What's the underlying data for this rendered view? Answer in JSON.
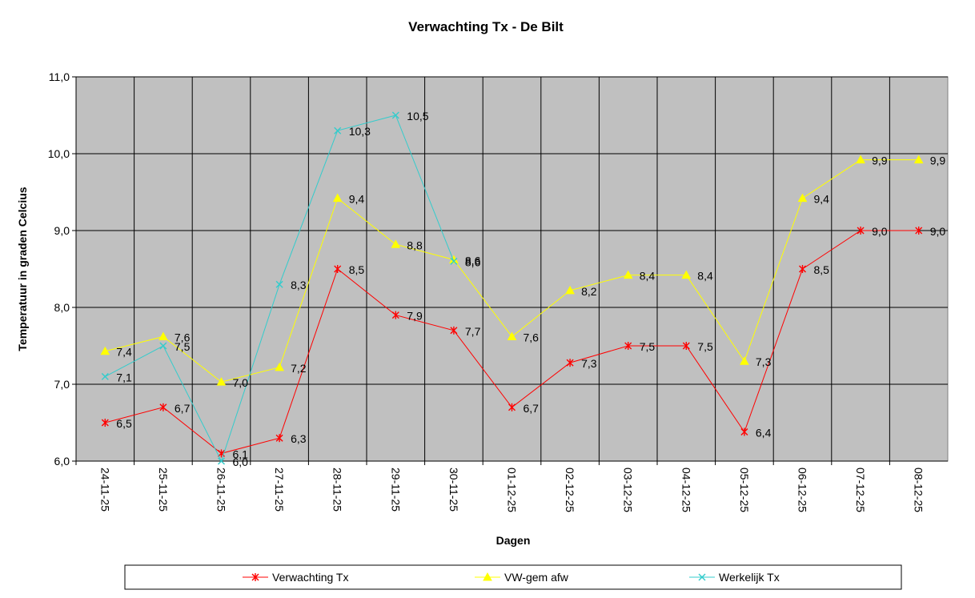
{
  "chart_data": {
    "type": "line",
    "title": "Verwachting Tx - De Bilt",
    "xlabel": "Dagen",
    "ylabel": "Temperatuur in graden Celcius",
    "ylim": [
      6.0,
      11.0
    ],
    "yticks": [
      "6,0",
      "7,0",
      "8,0",
      "9,0",
      "10,0",
      "11,0"
    ],
    "grid": true,
    "legend_position": "bottom",
    "plot_background": "#c0c0c0",
    "categories": [
      "24-11-25",
      "25-11-25",
      "26-11-25",
      "27-11-25",
      "28-11-25",
      "29-11-25",
      "30-11-25",
      "01-12-25",
      "02-12-25",
      "03-12-25",
      "04-12-25",
      "05-12-25",
      "06-12-25",
      "07-12-25",
      "08-12-25"
    ],
    "series": [
      {
        "name": "Verwachting Tx",
        "color": "#ff0000",
        "marker": "asterisk",
        "values": [
          6.5,
          6.7,
          6.1,
          6.3,
          8.5,
          7.9,
          7.7,
          6.7,
          7.28,
          7.5,
          7.5,
          6.38,
          8.5,
          9.0,
          9.0
        ],
        "labels": [
          "6,5",
          "6,7",
          "6,1",
          "6,3",
          "8,5",
          "7,9",
          "7,7",
          "6,7",
          "7,3",
          "7,5",
          "7,5",
          "6,4",
          "8,5",
          "9,0",
          "9,0"
        ]
      },
      {
        "name": "VW-gem afw",
        "color": "#ffff00",
        "marker": "triangle",
        "values": [
          7.43,
          7.62,
          7.03,
          7.22,
          9.42,
          8.82,
          8.62,
          7.62,
          8.22,
          8.42,
          8.42,
          7.3,
          9.42,
          9.92,
          9.92
        ],
        "labels": [
          "7,4",
          "7,6",
          "7,0",
          "7,2",
          "9,4",
          "8,8",
          "8,6",
          "7,6",
          "8,2",
          "8,4",
          "8,4",
          "7,3",
          "9,4",
          "9,9",
          "9,9"
        ]
      },
      {
        "name": "Werkelijk Tx",
        "color": "#33cccc",
        "marker": "x",
        "values": [
          7.1,
          7.5,
          6.0,
          8.3,
          10.3,
          10.5,
          8.6,
          null,
          null,
          null,
          null,
          null,
          null,
          null,
          null
        ],
        "labels": [
          "7,1",
          "7,5",
          "6,0",
          "8,3",
          "10,3",
          "10,5",
          "8,6",
          "",
          "",
          "",
          "",
          "",
          "",
          "",
          ""
        ]
      }
    ]
  }
}
